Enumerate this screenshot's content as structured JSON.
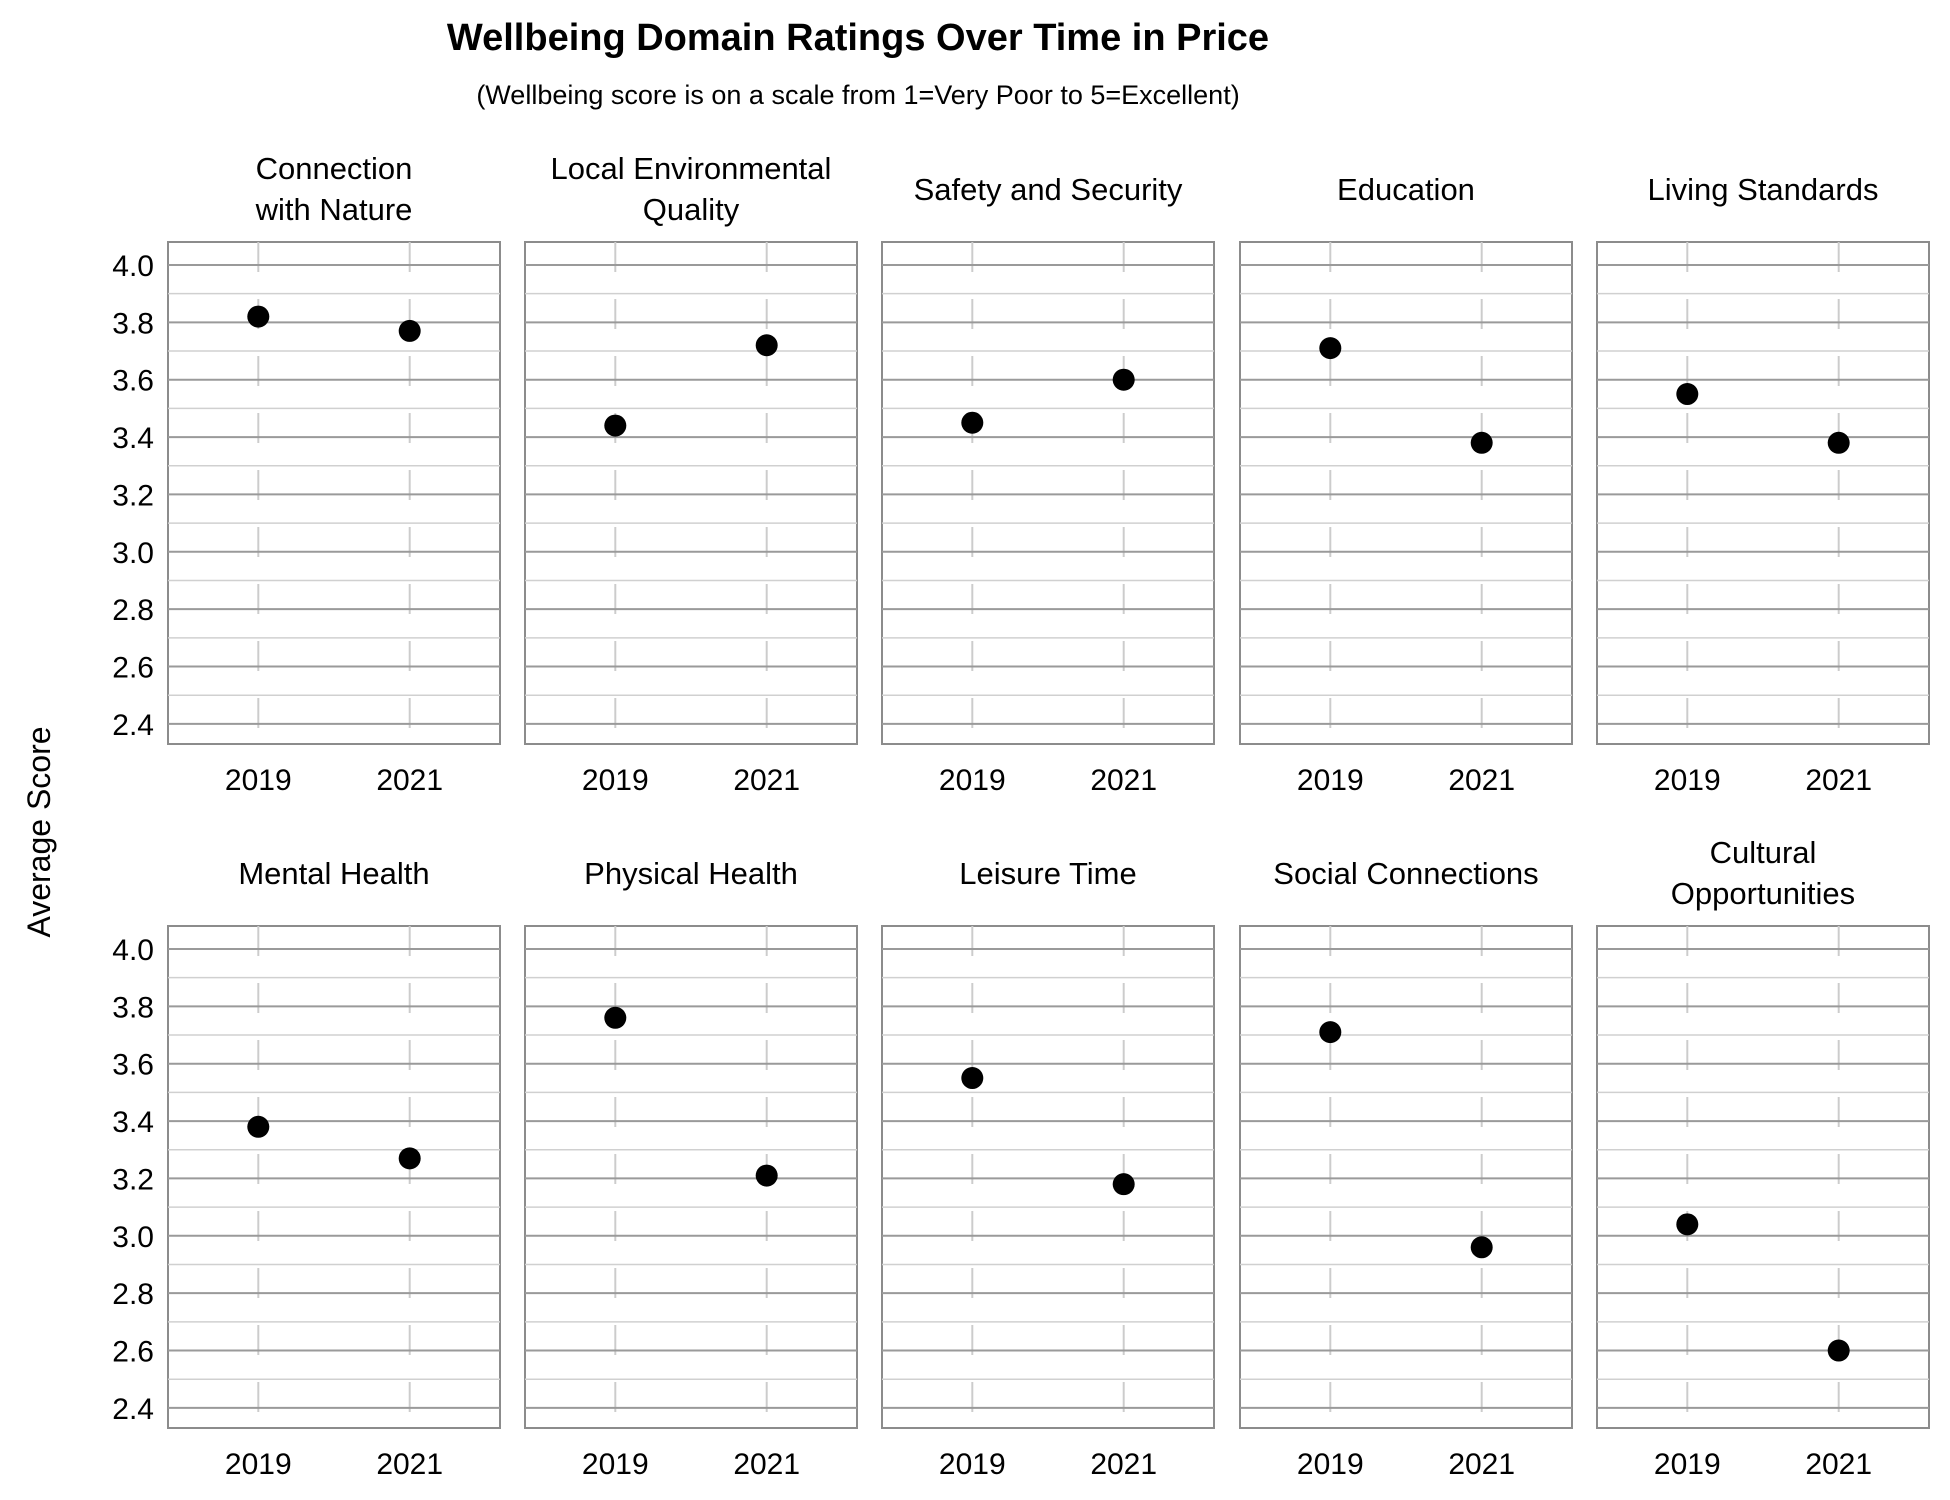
{
  "chart_data": {
    "type": "scatter",
    "title": "Wellbeing Domain Ratings Over Time in Price",
    "subtitle": "(Wellbeing score is on a scale from 1=Very Poor to 5=Excellent)",
    "ylabel": "Average Score",
    "x_categories": [
      "2019",
      "2021"
    ],
    "ylim": [
      2.33,
      4.08
    ],
    "y_ticks": [
      "2.4",
      "2.6",
      "2.8",
      "3.0",
      "3.2",
      "3.4",
      "3.6",
      "3.8",
      "4.0"
    ],
    "marker_color": "#000000",
    "grid": true,
    "panels": [
      {
        "title": [
          "Connection",
          "with Nature"
        ],
        "values": [
          3.82,
          3.77
        ]
      },
      {
        "title": [
          "Local Environmental",
          "Quality"
        ],
        "values": [
          3.44,
          3.72
        ]
      },
      {
        "title": [
          "Safety and Security"
        ],
        "values": [
          3.45,
          3.6
        ]
      },
      {
        "title": [
          "Education"
        ],
        "values": [
          3.71,
          3.38
        ]
      },
      {
        "title": [
          "Living Standards"
        ],
        "values": [
          3.55,
          3.38
        ]
      },
      {
        "title": [
          "Mental Health"
        ],
        "values": [
          3.38,
          3.27
        ]
      },
      {
        "title": [
          "Physical Health"
        ],
        "values": [
          3.76,
          3.21
        ]
      },
      {
        "title": [
          "Leisure Time"
        ],
        "values": [
          3.55,
          3.18
        ]
      },
      {
        "title": [
          "Social Connections"
        ],
        "values": [
          3.71,
          2.96
        ]
      },
      {
        "title": [
          "Cultural",
          "Opportunities"
        ],
        "values": [
          3.04,
          2.6
        ]
      }
    ]
  }
}
